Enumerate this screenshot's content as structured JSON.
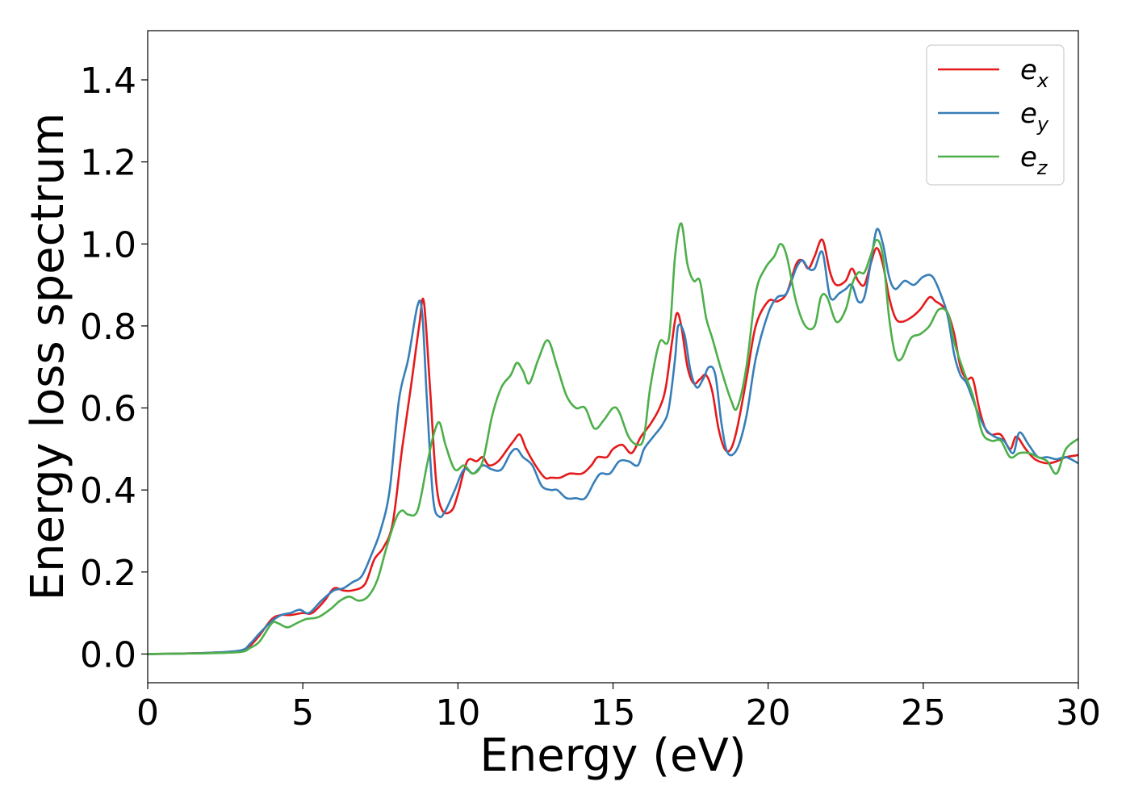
{
  "chart_data": {
    "type": "line",
    "title": "",
    "xlabel": "Energy (eV)",
    "ylabel": "Energy loss spectrum",
    "xlim": [
      0,
      30
    ],
    "ylim": [
      -0.07,
      1.52
    ],
    "xticks": [
      0,
      5,
      10,
      15,
      20,
      25,
      30
    ],
    "xtick_labels": [
      "0",
      "5",
      "10",
      "15",
      "20",
      "25",
      "30"
    ],
    "yticks": [
      0.0,
      0.2,
      0.4,
      0.6,
      0.8,
      1.0,
      1.2,
      1.4
    ],
    "ytick_labels": [
      "0.0",
      "0.2",
      "0.4",
      "0.6",
      "0.8",
      "1.0",
      "1.2",
      "1.4"
    ],
    "grid": false,
    "legend_position": "top-right",
    "series": [
      {
        "name": "e",
        "subscript": "x",
        "color": "#e41a1c",
        "x": [
          0,
          1,
          2,
          3,
          3.3,
          3.6,
          4.0,
          4.3,
          4.6,
          5.0,
          5.3,
          5.7,
          6.0,
          6.3,
          6.6,
          7.0,
          7.3,
          7.6,
          7.9,
          8.2,
          8.5,
          8.75,
          8.9,
          9.1,
          9.3,
          9.5,
          9.8,
          10.0,
          10.3,
          10.6,
          10.8,
          11.0,
          11.3,
          11.6,
          11.8,
          12.0,
          12.2,
          12.5,
          12.8,
          13.0,
          13.3,
          13.6,
          14.0,
          14.3,
          14.5,
          14.8,
          15.0,
          15.3,
          15.6,
          15.9,
          16.2,
          16.5,
          16.7,
          16.9,
          17.05,
          17.2,
          17.4,
          17.6,
          17.8,
          18.0,
          18.2,
          18.4,
          18.6,
          18.8,
          19.0,
          19.3,
          19.6,
          20.0,
          20.3,
          20.6,
          20.9,
          21.1,
          21.3,
          21.5,
          21.75,
          22.0,
          22.2,
          22.5,
          22.7,
          22.9,
          23.1,
          23.3,
          23.5,
          23.7,
          23.9,
          24.1,
          24.3,
          24.6,
          24.9,
          25.2,
          25.4,
          25.6,
          25.8,
          26.0,
          26.2,
          26.4,
          26.6,
          26.8,
          27.0,
          27.2,
          27.5,
          27.8,
          28.0,
          28.3,
          28.6,
          29.0,
          29.3,
          29.6,
          30.0
        ],
        "values": [
          0.0,
          0.001,
          0.003,
          0.008,
          0.02,
          0.045,
          0.085,
          0.095,
          0.095,
          0.1,
          0.1,
          0.13,
          0.16,
          0.155,
          0.155,
          0.17,
          0.23,
          0.26,
          0.32,
          0.5,
          0.66,
          0.8,
          0.86,
          0.65,
          0.42,
          0.35,
          0.35,
          0.39,
          0.47,
          0.47,
          0.48,
          0.46,
          0.47,
          0.5,
          0.52,
          0.535,
          0.5,
          0.46,
          0.43,
          0.43,
          0.43,
          0.44,
          0.44,
          0.46,
          0.48,
          0.48,
          0.5,
          0.51,
          0.49,
          0.53,
          0.56,
          0.6,
          0.65,
          0.76,
          0.83,
          0.8,
          0.7,
          0.66,
          0.67,
          0.68,
          0.64,
          0.55,
          0.5,
          0.5,
          0.55,
          0.67,
          0.8,
          0.86,
          0.86,
          0.88,
          0.95,
          0.96,
          0.94,
          0.97,
          1.01,
          0.93,
          0.9,
          0.91,
          0.94,
          0.91,
          0.9,
          0.95,
          0.99,
          0.95,
          0.87,
          0.82,
          0.81,
          0.82,
          0.84,
          0.87,
          0.86,
          0.85,
          0.83,
          0.78,
          0.7,
          0.67,
          0.67,
          0.6,
          0.55,
          0.535,
          0.535,
          0.5,
          0.53,
          0.5,
          0.475,
          0.465,
          0.47,
          0.48,
          0.485
        ]
      },
      {
        "name": "e",
        "subscript": "y",
        "color": "#377eb8",
        "x": [
          0,
          1,
          2,
          3,
          3.3,
          3.6,
          4.0,
          4.3,
          4.6,
          4.9,
          5.2,
          5.6,
          6.0,
          6.3,
          6.6,
          6.9,
          7.2,
          7.5,
          7.8,
          8.1,
          8.4,
          8.7,
          8.85,
          9.0,
          9.2,
          9.4,
          9.6,
          9.9,
          10.2,
          10.5,
          10.8,
          11.1,
          11.4,
          11.7,
          11.9,
          12.1,
          12.4,
          12.7,
          13.0,
          13.2,
          13.5,
          13.8,
          14.1,
          14.4,
          14.6,
          14.9,
          15.2,
          15.5,
          15.8,
          16.0,
          16.3,
          16.6,
          16.8,
          17.0,
          17.1,
          17.3,
          17.5,
          17.7,
          17.9,
          18.1,
          18.3,
          18.5,
          18.7,
          19.0,
          19.3,
          19.6,
          20.0,
          20.3,
          20.6,
          20.9,
          21.1,
          21.3,
          21.5,
          21.75,
          22.0,
          22.3,
          22.5,
          22.7,
          22.9,
          23.1,
          23.3,
          23.5,
          23.7,
          23.9,
          24.1,
          24.4,
          24.7,
          25.0,
          25.3,
          25.6,
          25.8,
          26.0,
          26.2,
          26.4,
          26.7,
          27.0,
          27.3,
          27.6,
          27.9,
          28.1,
          28.4,
          28.7,
          29.0,
          29.3,
          29.6,
          30.0
        ],
        "values": [
          0.0,
          0.001,
          0.003,
          0.009,
          0.025,
          0.05,
          0.08,
          0.095,
          0.1,
          0.108,
          0.1,
          0.13,
          0.155,
          0.16,
          0.175,
          0.19,
          0.24,
          0.3,
          0.4,
          0.62,
          0.72,
          0.85,
          0.83,
          0.62,
          0.38,
          0.335,
          0.35,
          0.4,
          0.45,
          0.44,
          0.46,
          0.45,
          0.45,
          0.49,
          0.5,
          0.48,
          0.46,
          0.41,
          0.4,
          0.4,
          0.38,
          0.38,
          0.38,
          0.42,
          0.44,
          0.44,
          0.47,
          0.47,
          0.46,
          0.5,
          0.53,
          0.56,
          0.6,
          0.72,
          0.8,
          0.78,
          0.69,
          0.65,
          0.67,
          0.7,
          0.68,
          0.56,
          0.49,
          0.5,
          0.58,
          0.72,
          0.83,
          0.87,
          0.88,
          0.94,
          0.96,
          0.94,
          0.94,
          0.98,
          0.87,
          0.88,
          0.89,
          0.9,
          0.86,
          0.87,
          0.95,
          1.035,
          1.0,
          0.92,
          0.89,
          0.91,
          0.9,
          0.92,
          0.92,
          0.87,
          0.82,
          0.73,
          0.68,
          0.66,
          0.6,
          0.55,
          0.53,
          0.52,
          0.49,
          0.54,
          0.51,
          0.48,
          0.48,
          0.475,
          0.48,
          0.465
        ]
      },
      {
        "name": "e",
        "subscript": "z",
        "color": "#4daf4a",
        "x": [
          0,
          1,
          2,
          3,
          3.3,
          3.6,
          4.0,
          4.2,
          4.5,
          4.8,
          5.1,
          5.5,
          5.9,
          6.2,
          6.5,
          6.8,
          7.1,
          7.4,
          7.7,
          8.0,
          8.2,
          8.4,
          8.7,
          9.0,
          9.2,
          9.4,
          9.6,
          9.9,
          10.2,
          10.5,
          10.8,
          11.1,
          11.4,
          11.7,
          11.9,
          12.1,
          12.3,
          12.6,
          12.9,
          13.2,
          13.5,
          13.8,
          14.1,
          14.4,
          14.7,
          15.0,
          15.2,
          15.5,
          15.8,
          16.0,
          16.2,
          16.5,
          16.8,
          17.0,
          17.2,
          17.4,
          17.6,
          17.8,
          18.0,
          18.2,
          18.5,
          18.8,
          19.0,
          19.3,
          19.6,
          19.9,
          20.2,
          20.4,
          20.6,
          20.9,
          21.2,
          21.5,
          21.7,
          21.9,
          22.2,
          22.5,
          22.7,
          22.9,
          23.1,
          23.3,
          23.5,
          23.7,
          23.9,
          24.1,
          24.3,
          24.6,
          24.9,
          25.2,
          25.5,
          25.8,
          26.0,
          26.3,
          26.6,
          26.9,
          27.2,
          27.5,
          27.8,
          28.1,
          28.4,
          28.7,
          29.0,
          29.3,
          29.6,
          30.0
        ],
        "values": [
          0.0,
          0.001,
          0.002,
          0.005,
          0.015,
          0.03,
          0.075,
          0.075,
          0.065,
          0.075,
          0.085,
          0.09,
          0.11,
          0.13,
          0.14,
          0.13,
          0.14,
          0.18,
          0.26,
          0.33,
          0.35,
          0.34,
          0.35,
          0.46,
          0.53,
          0.565,
          0.51,
          0.45,
          0.46,
          0.44,
          0.47,
          0.58,
          0.65,
          0.68,
          0.71,
          0.69,
          0.66,
          0.72,
          0.765,
          0.7,
          0.63,
          0.6,
          0.6,
          0.55,
          0.57,
          0.6,
          0.59,
          0.53,
          0.51,
          0.53,
          0.65,
          0.76,
          0.77,
          0.97,
          1.05,
          0.95,
          0.91,
          0.91,
          0.82,
          0.77,
          0.69,
          0.62,
          0.6,
          0.7,
          0.88,
          0.94,
          0.97,
          1.0,
          0.97,
          0.86,
          0.8,
          0.8,
          0.87,
          0.87,
          0.81,
          0.84,
          0.9,
          0.93,
          0.93,
          0.97,
          1.01,
          0.97,
          0.82,
          0.73,
          0.72,
          0.77,
          0.78,
          0.8,
          0.84,
          0.83,
          0.76,
          0.69,
          0.63,
          0.54,
          0.52,
          0.52,
          0.48,
          0.49,
          0.49,
          0.48,
          0.47,
          0.44,
          0.5,
          0.525
        ]
      }
    ]
  }
}
